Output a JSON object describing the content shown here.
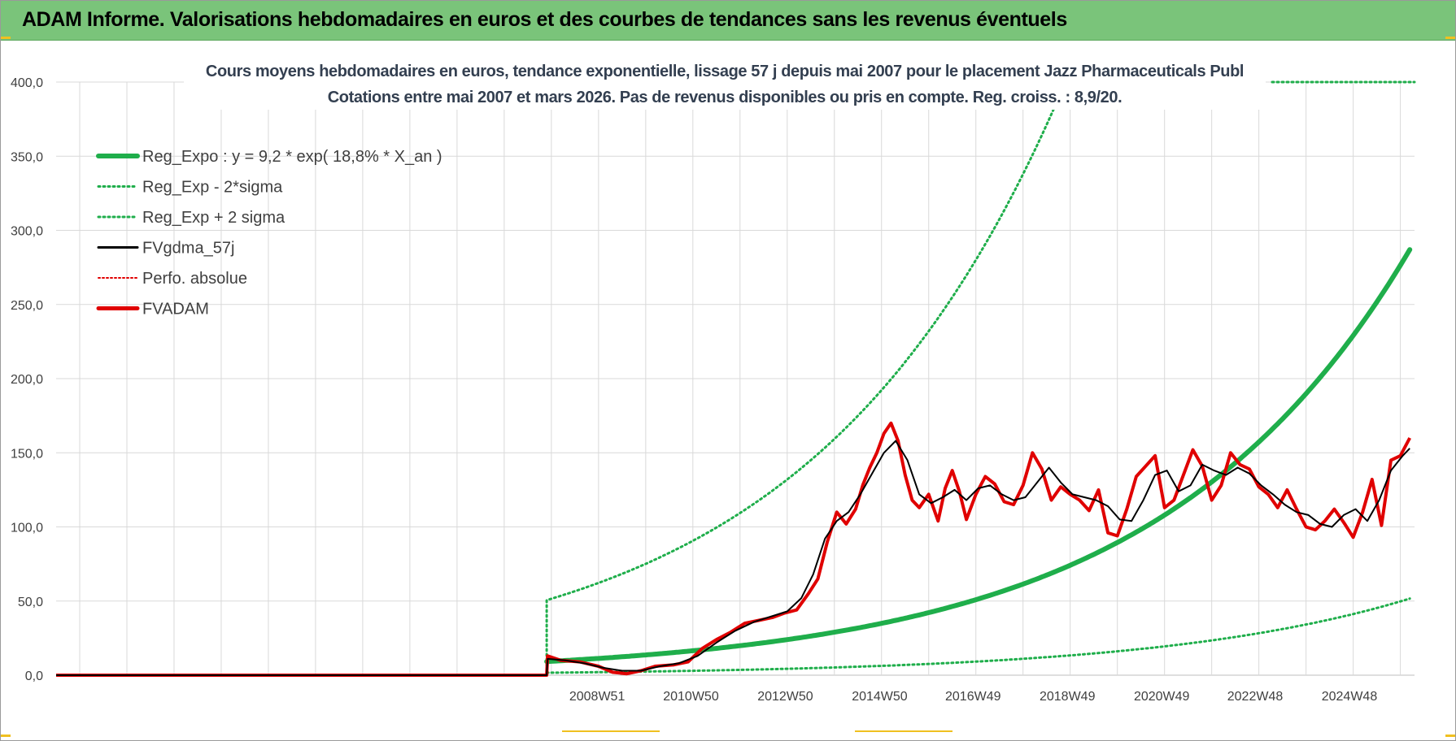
{
  "header": {
    "title": "ADAM Informe. Valorisations hebdomadaires en euros et des courbes de tendances sans les revenus éventuels"
  },
  "colors": {
    "banner": "#7ac47a",
    "reg_expo": "#1fae4b",
    "sigma": "#1fae4b",
    "fvgdma": "#000000",
    "perfo": "#e00000",
    "fvadam": "#e00000",
    "grid": "#d9d9d9"
  },
  "chart_data": {
    "type": "line",
    "title": "Cours moyens hebdomadaires en euros, tendance exponentielle, lissage 57 j depuis mai 2007 pour le placement Jazz Pharmaceuticals Publ",
    "subtitle": "Cotations entre mai 2007 et mars 2026.  Pas de revenus disponibles ou pris en compte. Reg. croiss. : 8,9/20.",
    "xlabel": "",
    "ylabel": "",
    "ylim": [
      0,
      400
    ],
    "yticks": [
      "0,0",
      "50,0",
      "100,0",
      "150,0",
      "200,0",
      "250,0",
      "300,0",
      "350,0",
      "400,0"
    ],
    "xlim": [
      1997.5,
      2026.3
    ],
    "xticks": [
      {
        "label": "2008W51",
        "year": 2008.97
      },
      {
        "label": "2010W50",
        "year": 2010.96
      },
      {
        "label": "2012W50",
        "year": 2012.96
      },
      {
        "label": "2014W50",
        "year": 2014.96
      },
      {
        "label": "2016W49",
        "year": 2016.94
      },
      {
        "label": "2018W49",
        "year": 2018.94
      },
      {
        "label": "2020W49",
        "year": 2020.94
      },
      {
        "label": "2022W48",
        "year": 2022.92
      },
      {
        "label": "2024W48",
        "year": 2024.92
      }
    ],
    "grid": true,
    "legend_position": "top-left",
    "legend": [
      {
        "key": "reg_expo",
        "label": "Reg_Expo : y = 9,2 * exp( 18,8% *  X_an )",
        "style": "thick"
      },
      {
        "key": "sigma_minus",
        "label": "Reg_Exp - 2*sigma",
        "style": "dotted"
      },
      {
        "key": "sigma_plus",
        "label": "Reg_Exp + 2 sigma",
        "style": "dotted"
      },
      {
        "key": "fvgdma",
        "label": "FVgdma_57j",
        "style": "solid"
      },
      {
        "key": "perfo",
        "label": "Perfo. absolue",
        "style": "dotted-red"
      },
      {
        "key": "fvadam",
        "label": "FVADAM",
        "style": "thick-red"
      }
    ],
    "regression": {
      "start_year": 2007.9,
      "end_year": 2026.2,
      "a": 9.2,
      "rate": 0.188,
      "minus_factor": 0.18,
      "plus_factor": 5.5,
      "upper_cap": 400
    },
    "series": [
      {
        "name": "FVADAM",
        "x": [
          1997.5,
          2007.9,
          2007.92,
          2008.2,
          2008.6,
          2009.0,
          2009.3,
          2009.6,
          2009.9,
          2010.2,
          2010.6,
          2010.9,
          2011.2,
          2011.5,
          2011.8,
          2012.1,
          2012.4,
          2012.7,
          2012.95,
          2013.2,
          2013.45,
          2013.65,
          2013.85,
          2014.05,
          2014.25,
          2014.45,
          2014.6,
          2014.75,
          2014.9,
          2015.05,
          2015.2,
          2015.35,
          2015.5,
          2015.65,
          2015.8,
          2016.0,
          2016.2,
          2016.35,
          2016.5,
          2016.65,
          2016.8,
          2017.0,
          2017.2,
          2017.4,
          2017.6,
          2017.8,
          2018.0,
          2018.2,
          2018.4,
          2018.6,
          2018.8,
          2019.0,
          2019.2,
          2019.4,
          2019.6,
          2019.8,
          2020.0,
          2020.2,
          2020.4,
          2020.6,
          2020.8,
          2021.0,
          2021.2,
          2021.4,
          2021.6,
          2021.8,
          2022.0,
          2022.2,
          2022.4,
          2022.6,
          2022.8,
          2023.0,
          2023.2,
          2023.4,
          2023.6,
          2023.8,
          2024.0,
          2024.2,
          2024.4,
          2024.6,
          2024.8,
          2025.0,
          2025.2,
          2025.4,
          2025.6,
          2025.8,
          2026.0,
          2026.2
        ],
        "y": [
          0,
          0,
          13,
          10,
          9,
          6,
          2,
          1,
          3,
          6,
          7,
          9,
          18,
          24,
          29,
          35,
          37,
          39,
          42,
          44,
          55,
          65,
          90,
          110,
          102,
          112,
          128,
          140,
          150,
          163,
          170,
          158,
          135,
          118,
          113,
          122,
          104,
          126,
          138,
          124,
          105,
          122,
          134,
          129,
          117,
          115,
          128,
          150,
          139,
          118,
          127,
          122,
          118,
          111,
          125,
          96,
          94,
          112,
          134,
          141,
          148,
          113,
          118,
          135,
          152,
          141,
          118,
          128,
          150,
          142,
          139,
          127,
          122,
          113,
          125,
          112,
          100,
          98,
          104,
          112,
          103,
          93,
          110,
          132,
          101,
          145,
          148,
          160
        ]
      },
      {
        "name": "FVgdma_57j",
        "x": [
          1997.5,
          2007.9,
          2007.92,
          2008.3,
          2008.7,
          2009.1,
          2009.5,
          2009.9,
          2010.3,
          2010.7,
          2011.1,
          2011.5,
          2011.9,
          2012.3,
          2012.7,
          2013.0,
          2013.3,
          2013.55,
          2013.8,
          2014.05,
          2014.3,
          2014.55,
          2014.8,
          2015.05,
          2015.3,
          2015.55,
          2015.8,
          2016.05,
          2016.3,
          2016.55,
          2016.8,
          2017.05,
          2017.3,
          2017.55,
          2017.8,
          2018.05,
          2018.3,
          2018.55,
          2018.8,
          2019.05,
          2019.3,
          2019.55,
          2019.8,
          2020.05,
          2020.3,
          2020.55,
          2020.8,
          2021.05,
          2021.3,
          2021.55,
          2021.8,
          2022.05,
          2022.3,
          2022.55,
          2022.8,
          2023.05,
          2023.3,
          2023.55,
          2023.8,
          2024.05,
          2024.3,
          2024.55,
          2024.8,
          2025.05,
          2025.3,
          2025.55,
          2025.8,
          2026.05,
          2026.2
        ],
        "y": [
          0,
          0,
          11,
          10,
          8,
          5,
          3,
          3,
          6,
          8,
          13,
          22,
          30,
          36,
          40,
          43,
          52,
          68,
          92,
          104,
          110,
          122,
          136,
          150,
          158,
          145,
          122,
          116,
          120,
          125,
          118,
          126,
          128,
          122,
          118,
          120,
          130,
          140,
          130,
          122,
          120,
          118,
          114,
          105,
          104,
          118,
          135,
          138,
          124,
          128,
          142,
          138,
          135,
          140,
          136,
          128,
          122,
          115,
          110,
          108,
          102,
          100,
          108,
          112,
          104,
          118,
          138,
          148,
          153
        ]
      }
    ]
  }
}
